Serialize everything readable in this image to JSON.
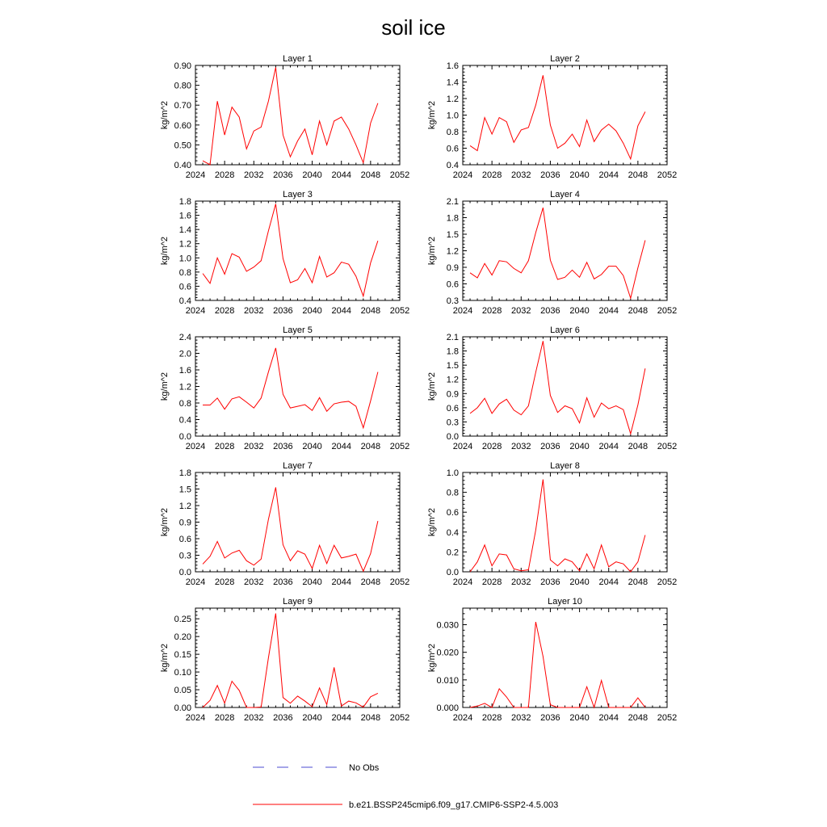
{
  "figure": {
    "title": "soil ice",
    "legend": {
      "obs_label": "No Obs",
      "obs_color": "#4b4bd2",
      "model_label": "b.e21.BSSP245cmip6.f09_g17.CMIP6-SSP2-4.5.003",
      "model_color": "#ff0000"
    }
  },
  "chart_data": [
    {
      "type": "line",
      "title": "Layer 1",
      "xlabel": "",
      "ylabel": "kg/m^2",
      "xlim": [
        2024,
        2052
      ],
      "ylim": [
        0.4,
        0.9
      ],
      "xticks": [
        "2024",
        "2028",
        "2032",
        "2036",
        "2040",
        "2044",
        "2048",
        "2052"
      ],
      "yticks": [
        "0.40",
        "0.50",
        "0.60",
        "0.70",
        "0.80",
        "0.90"
      ],
      "x": [
        2025,
        2026,
        2027,
        2028,
        2029,
        2030,
        2031,
        2032,
        2033,
        2034,
        2035,
        2036,
        2037,
        2038,
        2039,
        2040,
        2041,
        2042,
        2043,
        2044,
        2045,
        2046,
        2047,
        2048,
        2049
      ],
      "series": [
        {
          "values": [
            0.42,
            0.4,
            0.72,
            0.55,
            0.69,
            0.64,
            0.48,
            0.57,
            0.59,
            0.72,
            0.89,
            0.55,
            0.44,
            0.52,
            0.58,
            0.45,
            0.62,
            0.5,
            0.62,
            0.64,
            0.58,
            0.5,
            0.41,
            0.61,
            0.71
          ]
        }
      ]
    },
    {
      "type": "line",
      "title": "Layer 2",
      "xlabel": "",
      "ylabel": "kg/m^2",
      "xlim": [
        2024,
        2052
      ],
      "ylim": [
        0.4,
        1.6
      ],
      "xticks": [
        "2024",
        "2028",
        "2032",
        "2036",
        "2040",
        "2044",
        "2048",
        "2052"
      ],
      "yticks": [
        "0.4",
        "0.6",
        "0.8",
        "1.0",
        "1.2",
        "1.4",
        "1.6"
      ],
      "x": [
        2025,
        2026,
        2027,
        2028,
        2029,
        2030,
        2031,
        2032,
        2033,
        2034,
        2035,
        2036,
        2037,
        2038,
        2039,
        2040,
        2041,
        2042,
        2043,
        2044,
        2045,
        2046,
        2047,
        2048,
        2049
      ],
      "series": [
        {
          "values": [
            0.63,
            0.57,
            0.97,
            0.77,
            0.97,
            0.92,
            0.67,
            0.82,
            0.85,
            1.12,
            1.48,
            0.88,
            0.6,
            0.66,
            0.77,
            0.62,
            0.94,
            0.68,
            0.82,
            0.89,
            0.81,
            0.66,
            0.47,
            0.87,
            1.04
          ]
        }
      ]
    },
    {
      "type": "line",
      "title": "Layer 3",
      "xlabel": "",
      "ylabel": "kg/m^2",
      "xlim": [
        2024,
        2052
      ],
      "ylim": [
        0.4,
        1.8
      ],
      "xticks": [
        "2024",
        "2028",
        "2032",
        "2036",
        "2040",
        "2044",
        "2048",
        "2052"
      ],
      "yticks": [
        "0.4",
        "0.6",
        "0.8",
        "1.0",
        "1.2",
        "1.4",
        "1.6",
        "1.8"
      ],
      "x": [
        2025,
        2026,
        2027,
        2028,
        2029,
        2030,
        2031,
        2032,
        2033,
        2034,
        2035,
        2036,
        2037,
        2038,
        2039,
        2040,
        2041,
        2042,
        2043,
        2044,
        2045,
        2046,
        2047,
        2048,
        2049
      ],
      "series": [
        {
          "values": [
            0.78,
            0.64,
            1.0,
            0.77,
            1.06,
            1.01,
            0.81,
            0.87,
            0.96,
            1.38,
            1.76,
            0.99,
            0.65,
            0.69,
            0.85,
            0.65,
            1.02,
            0.73,
            0.79,
            0.94,
            0.91,
            0.74,
            0.46,
            0.93,
            1.24
          ]
        }
      ]
    },
    {
      "type": "line",
      "title": "Layer 4",
      "xlabel": "",
      "ylabel": "kg/m^2",
      "xlim": [
        2024,
        2052
      ],
      "ylim": [
        0.3,
        2.1
      ],
      "xticks": [
        "2024",
        "2028",
        "2032",
        "2036",
        "2040",
        "2044",
        "2048",
        "2052"
      ],
      "yticks": [
        "0.3",
        "0.6",
        "0.9",
        "1.2",
        "1.5",
        "1.8",
        "2.1"
      ],
      "x": [
        2025,
        2026,
        2027,
        2028,
        2029,
        2030,
        2031,
        2032,
        2033,
        2034,
        2035,
        2036,
        2037,
        2038,
        2039,
        2040,
        2041,
        2042,
        2043,
        2044,
        2045,
        2046,
        2047,
        2048,
        2049
      ],
      "series": [
        {
          "values": [
            0.8,
            0.71,
            0.97,
            0.76,
            1.02,
            1.0,
            0.88,
            0.8,
            1.02,
            1.53,
            1.98,
            1.03,
            0.68,
            0.72,
            0.85,
            0.72,
            0.99,
            0.69,
            0.77,
            0.92,
            0.92,
            0.75,
            0.34,
            0.89,
            1.39
          ]
        }
      ]
    },
    {
      "type": "line",
      "title": "Layer 5",
      "xlabel": "",
      "ylabel": "kg/m^2",
      "xlim": [
        2024,
        2052
      ],
      "ylim": [
        0.0,
        2.4
      ],
      "xticks": [
        "2024",
        "2028",
        "2032",
        "2036",
        "2040",
        "2044",
        "2048",
        "2052"
      ],
      "yticks": [
        "0.0",
        "0.4",
        "0.8",
        "1.2",
        "1.6",
        "2.0",
        "2.4"
      ],
      "x": [
        2025,
        2026,
        2027,
        2028,
        2029,
        2030,
        2031,
        2032,
        2033,
        2034,
        2035,
        2036,
        2037,
        2038,
        2039,
        2040,
        2041,
        2042,
        2043,
        2044,
        2045,
        2046,
        2047,
        2048,
        2049
      ],
      "series": [
        {
          "values": [
            0.75,
            0.75,
            0.92,
            0.65,
            0.9,
            0.95,
            0.82,
            0.68,
            0.92,
            1.55,
            2.13,
            1.01,
            0.68,
            0.72,
            0.76,
            0.62,
            0.93,
            0.6,
            0.78,
            0.82,
            0.84,
            0.72,
            0.2,
            0.85,
            1.55
          ]
        }
      ]
    },
    {
      "type": "line",
      "title": "Layer 6",
      "xlabel": "",
      "ylabel": "kg/m^2",
      "xlim": [
        2024,
        2052
      ],
      "ylim": [
        0.0,
        2.1
      ],
      "xticks": [
        "2024",
        "2028",
        "2032",
        "2036",
        "2040",
        "2044",
        "2048",
        "2052"
      ],
      "yticks": [
        "0.0",
        "0.3",
        "0.6",
        "0.9",
        "1.2",
        "1.5",
        "1.8",
        "2.1"
      ],
      "x": [
        2025,
        2026,
        2027,
        2028,
        2029,
        2030,
        2031,
        2032,
        2033,
        2034,
        2035,
        2036,
        2037,
        2038,
        2039,
        2040,
        2041,
        2042,
        2043,
        2044,
        2045,
        2046,
        2047,
        2048,
        2049
      ],
      "series": [
        {
          "values": [
            0.48,
            0.6,
            0.8,
            0.48,
            0.68,
            0.78,
            0.55,
            0.45,
            0.64,
            1.35,
            2.01,
            0.86,
            0.5,
            0.64,
            0.58,
            0.28,
            0.81,
            0.4,
            0.7,
            0.58,
            0.64,
            0.56,
            0.05,
            0.66,
            1.43
          ]
        }
      ]
    },
    {
      "type": "line",
      "title": "Layer 7",
      "xlabel": "",
      "ylabel": "kg/m^2",
      "xlim": [
        2024,
        2052
      ],
      "ylim": [
        0.0,
        1.8
      ],
      "xticks": [
        "2024",
        "2028",
        "2032",
        "2036",
        "2040",
        "2044",
        "2048",
        "2052"
      ],
      "yticks": [
        "0.0",
        "0.3",
        "0.6",
        "0.9",
        "1.2",
        "1.5",
        "1.8"
      ],
      "x": [
        2025,
        2026,
        2027,
        2028,
        2029,
        2030,
        2031,
        2032,
        2033,
        2034,
        2035,
        2036,
        2037,
        2038,
        2039,
        2040,
        2041,
        2042,
        2043,
        2044,
        2045,
        2046,
        2047,
        2048,
        2049
      ],
      "series": [
        {
          "values": [
            0.14,
            0.28,
            0.55,
            0.25,
            0.34,
            0.39,
            0.2,
            0.12,
            0.23,
            0.95,
            1.53,
            0.49,
            0.2,
            0.38,
            0.32,
            0.06,
            0.48,
            0.15,
            0.48,
            0.25,
            0.28,
            0.32,
            0.01,
            0.33,
            0.92
          ]
        }
      ]
    },
    {
      "type": "line",
      "title": "Layer 8",
      "xlabel": "",
      "ylabel": "kg/m^2",
      "xlim": [
        2024,
        2052
      ],
      "ylim": [
        0.0,
        1.0
      ],
      "xticks": [
        "2024",
        "2028",
        "2032",
        "2036",
        "2040",
        "2044",
        "2048",
        "2052"
      ],
      "yticks": [
        "0.0",
        "0.2",
        "0.4",
        "0.6",
        "0.8",
        "1.0"
      ],
      "x": [
        2025,
        2026,
        2027,
        2028,
        2029,
        2030,
        2031,
        2032,
        2033,
        2034,
        2035,
        2036,
        2037,
        2038,
        2039,
        2040,
        2041,
        2042,
        2043,
        2044,
        2045,
        2046,
        2047,
        2048,
        2049
      ],
      "series": [
        {
          "values": [
            0.0,
            0.1,
            0.27,
            0.06,
            0.18,
            0.17,
            0.03,
            0.01,
            0.02,
            0.42,
            0.93,
            0.12,
            0.06,
            0.13,
            0.1,
            0.01,
            0.18,
            0.03,
            0.27,
            0.05,
            0.1,
            0.08,
            0.0,
            0.1,
            0.37
          ]
        }
      ]
    },
    {
      "type": "line",
      "title": "Layer 9",
      "xlabel": "",
      "ylabel": "kg/m^2",
      "xlim": [
        2024,
        2052
      ],
      "ylim": [
        0.0,
        0.28
      ],
      "xticks": [
        "2024",
        "2028",
        "2032",
        "2036",
        "2040",
        "2044",
        "2048",
        "2052"
      ],
      "yticks": [
        "0.00",
        "0.05",
        "0.10",
        "0.15",
        "0.20",
        "0.25"
      ],
      "x": [
        2025,
        2026,
        2027,
        2028,
        2029,
        2030,
        2031,
        2032,
        2033,
        2034,
        2035,
        2036,
        2037,
        2038,
        2039,
        2040,
        2041,
        2042,
        2043,
        2044,
        2045,
        2046,
        2047,
        2048,
        2049
      ],
      "series": [
        {
          "values": [
            0.0,
            0.02,
            0.062,
            0.012,
            0.074,
            0.048,
            0.0,
            0.0,
            0.001,
            0.14,
            0.265,
            0.028,
            0.012,
            0.032,
            0.018,
            0.002,
            0.055,
            0.008,
            0.113,
            0.004,
            0.018,
            0.013,
            0.001,
            0.03,
            0.04
          ]
        }
      ]
    },
    {
      "type": "line",
      "title": "Layer 10",
      "xlabel": "",
      "ylabel": "kg/m^2",
      "xlim": [
        2024,
        2052
      ],
      "ylim": [
        0.0,
        0.036
      ],
      "xticks": [
        "2024",
        "2028",
        "2032",
        "2036",
        "2040",
        "2044",
        "2048",
        "2052"
      ],
      "yticks": [
        "0.000",
        "0.010",
        "0.020",
        "0.030"
      ],
      "x": [
        2025,
        2026,
        2027,
        2028,
        2029,
        2030,
        2031,
        2032,
        2033,
        2034,
        2035,
        2036,
        2037,
        2038,
        2039,
        2040,
        2041,
        2042,
        2043,
        2044,
        2045,
        2046,
        2047,
        2048,
        2049
      ],
      "series": [
        {
          "values": [
            0.0,
            0.0005,
            0.0015,
            0.0,
            0.0068,
            0.0038,
            0.0,
            0.0,
            0.0,
            0.031,
            0.0185,
            0.001,
            0.0,
            0.0,
            0.0,
            0.0,
            0.0075,
            0.0,
            0.0098,
            0.0,
            0.0,
            0.0,
            0.0,
            0.0035,
            0.0
          ]
        }
      ]
    }
  ]
}
